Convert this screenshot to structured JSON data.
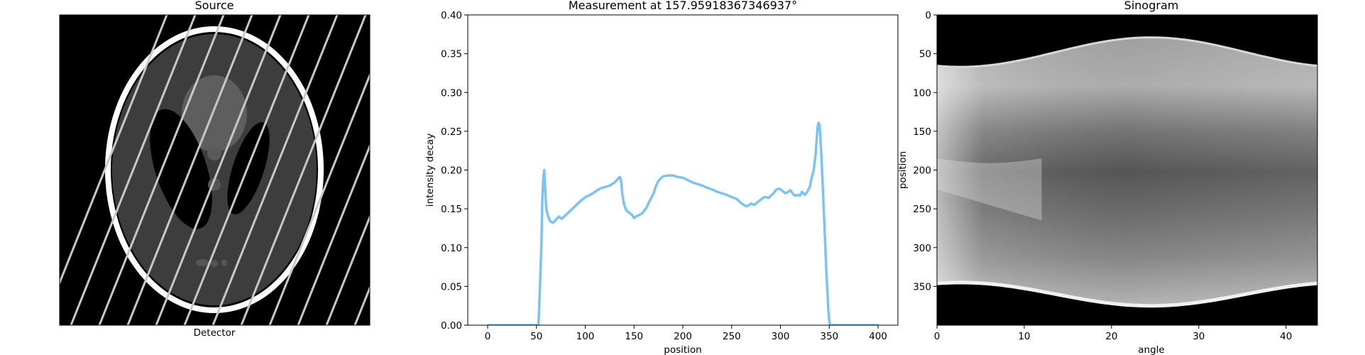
{
  "panels": {
    "source": {
      "title": "Source",
      "xlabel": "Detector",
      "colors": {
        "background": "#000000",
        "skull": "#ffffff",
        "tissue": "#3d3d3d",
        "ventricle": "#000000",
        "lines": "#c8c8c8"
      }
    },
    "measurement": {
      "title": "Measurement at 157.95918367346937°",
      "line_color": "#7cc2f2"
    },
    "sinogram": {
      "title": "Sinogram",
      "xlabel": "angle",
      "ylabel": "position",
      "xticks": [
        0,
        10,
        20,
        30,
        40
      ],
      "yticks": [
        0,
        50,
        100,
        150,
        200,
        250,
        300,
        350
      ],
      "xlim": [
        0,
        43.6
      ],
      "ylim": [
        0,
        400
      ],
      "colormap": "gray"
    }
  },
  "chart_data": [
    {
      "type": "line",
      "title": "Measurement at 157.95918367346937°",
      "xlabel": "position",
      "ylabel": "intensity decay",
      "xlim": [
        0,
        400
      ],
      "ylim": [
        0.0,
        0.4
      ],
      "xticks": [
        0,
        50,
        100,
        150,
        200,
        250,
        300,
        350,
        400
      ],
      "yticks": [
        "0.00",
        "0.05",
        "0.10",
        "0.15",
        "0.20",
        "0.25",
        "0.30",
        "0.35",
        "0.40"
      ],
      "grid": false,
      "series": [
        {
          "x": [
            0,
            52,
            53,
            55,
            56,
            57,
            58,
            59,
            60,
            62,
            64,
            67,
            70,
            73,
            76,
            80,
            85,
            90,
            95,
            100,
            105,
            110,
            115,
            120,
            125,
            130,
            133,
            135,
            136,
            137,
            138,
            140,
            142,
            145,
            148,
            150,
            152,
            155,
            158,
            160,
            163,
            165,
            168,
            170,
            172,
            175,
            178,
            180,
            185,
            190,
            195,
            200,
            205,
            210,
            215,
            220,
            225,
            230,
            235,
            240,
            245,
            250,
            255,
            260,
            265,
            268,
            270,
            273,
            275,
            278,
            280,
            283,
            285,
            288,
            290,
            293,
            295,
            298,
            300,
            302,
            305,
            308,
            310,
            313,
            315,
            318,
            320,
            322,
            325,
            327,
            330,
            332,
            334,
            336,
            337,
            338,
            339,
            340,
            341,
            342,
            343,
            345,
            347,
            349,
            350,
            351,
            360,
            380,
            400
          ],
          "y": [
            0.0,
            0.0,
            0.03,
            0.1,
            0.16,
            0.19,
            0.2,
            0.175,
            0.15,
            0.14,
            0.134,
            0.132,
            0.136,
            0.14,
            0.137,
            0.142,
            0.148,
            0.154,
            0.16,
            0.165,
            0.168,
            0.172,
            0.176,
            0.178,
            0.18,
            0.184,
            0.188,
            0.191,
            0.19,
            0.183,
            0.168,
            0.155,
            0.148,
            0.145,
            0.142,
            0.138,
            0.14,
            0.142,
            0.144,
            0.147,
            0.152,
            0.158,
            0.165,
            0.17,
            0.178,
            0.186,
            0.19,
            0.192,
            0.193,
            0.193,
            0.191,
            0.19,
            0.187,
            0.184,
            0.182,
            0.18,
            0.177,
            0.175,
            0.172,
            0.17,
            0.168,
            0.165,
            0.163,
            0.157,
            0.153,
            0.155,
            0.157,
            0.155,
            0.157,
            0.16,
            0.162,
            0.165,
            0.165,
            0.164,
            0.167,
            0.17,
            0.174,
            0.176,
            0.175,
            0.173,
            0.17,
            0.172,
            0.174,
            0.169,
            0.167,
            0.168,
            0.167,
            0.172,
            0.168,
            0.171,
            0.178,
            0.19,
            0.2,
            0.22,
            0.238,
            0.255,
            0.261,
            0.258,
            0.24,
            0.215,
            0.19,
            0.13,
            0.07,
            0.02,
            0.005,
            0.0,
            0.0,
            0.0,
            0.0
          ]
        }
      ]
    }
  ]
}
